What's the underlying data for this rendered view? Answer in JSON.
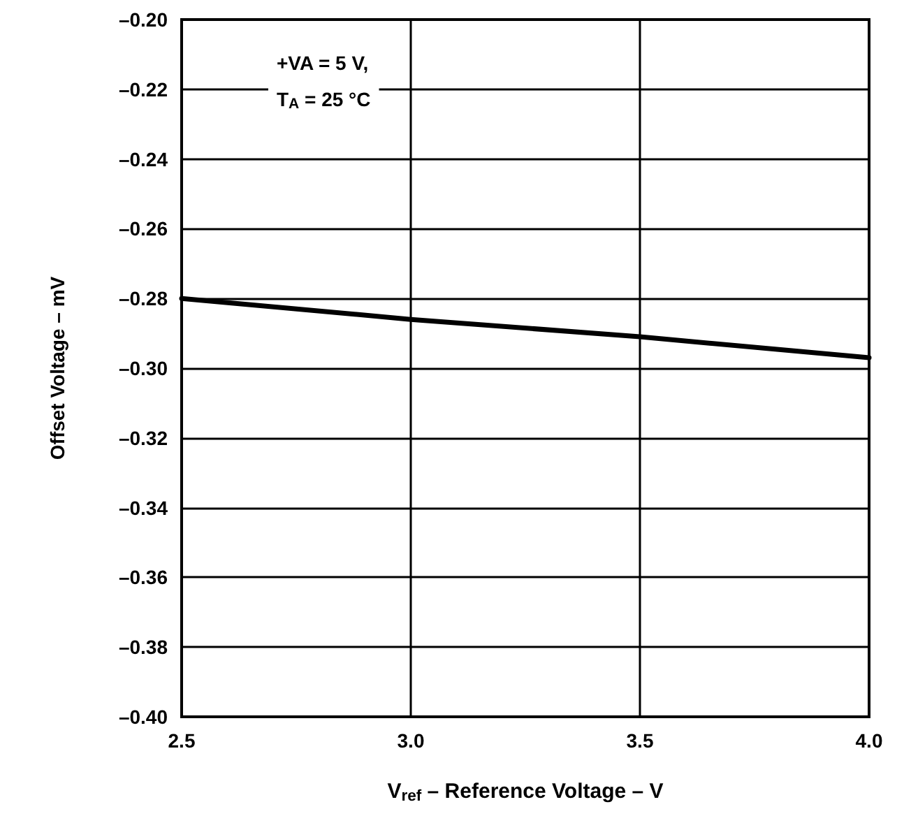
{
  "chart_data": {
    "type": "line",
    "xlabel": "V$_{ref}$ – Reference Voltage – V",
    "ylabel": "Offset Voltage – mV",
    "x": [
      2.5,
      3.0,
      3.5,
      4.0
    ],
    "series": [
      {
        "color": "#000000",
        "values": [
          -0.28,
          -0.286,
          -0.291,
          -0.297
        ]
      }
    ],
    "xlim": [
      2.5,
      4.0
    ],
    "xticks": [
      {
        "value": 2.5,
        "label": "2.5"
      },
      {
        "value": 3.0,
        "label": "3.0"
      },
      {
        "value": 3.5,
        "label": "3.5"
      },
      {
        "value": 4.0,
        "label": "4.0"
      }
    ],
    "ylim": [
      -0.4,
      -0.2
    ],
    "yticks": [
      {
        "value": -0.4,
        "label": "–0.40"
      },
      {
        "value": -0.38,
        "label": "–0.38"
      },
      {
        "value": -0.36,
        "label": "–0.36"
      },
      {
        "value": -0.34,
        "label": "–0.34"
      },
      {
        "value": -0.32,
        "label": "–0.32"
      },
      {
        "value": -0.3,
        "label": "–0.30"
      },
      {
        "value": -0.28,
        "label": "–0.28"
      },
      {
        "value": -0.26,
        "label": "–0.26"
      },
      {
        "value": -0.24,
        "label": "–0.24"
      },
      {
        "value": -0.22,
        "label": "–0.22"
      },
      {
        "value": -0.2,
        "label": "–0.20"
      }
    ],
    "annotations": [
      "+VA = 5 V,",
      "T$_{A}$ = 25 °C"
    ],
    "grid": true,
    "marker": "none",
    "line_style": "solid"
  }
}
